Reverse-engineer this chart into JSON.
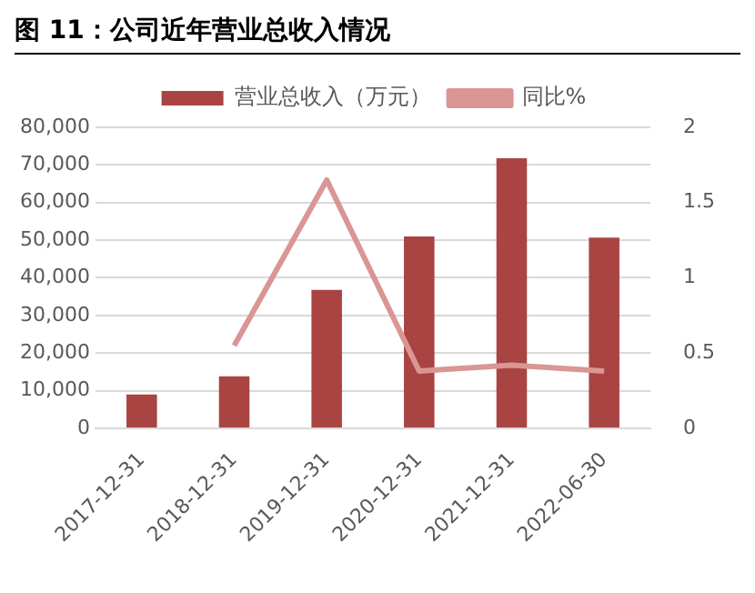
{
  "chart_data": {
    "type": "bar",
    "title": "图 11：公司近年营业总收入情况",
    "categories": [
      "2017-12-31",
      "2018-12-31",
      "2019-12-31",
      "2020-12-31",
      "2021-12-31",
      "2022-06-30"
    ],
    "series": [
      {
        "name": "营业总收入（万元）",
        "color": "#a94442",
        "values": [
          9000,
          13800,
          36800,
          51000,
          71800,
          50700
        ]
      },
      {
        "name": "同比%",
        "type": "line",
        "axis": "y2",
        "color": "#d99694",
        "values": [
          null,
          0.55,
          1.65,
          0.38,
          0.42,
          0.38
        ]
      }
    ],
    "ylim": [
      0,
      80000
    ],
    "yticks": [
      0,
      {
        "value": 10000,
        "label": "10,000"
      },
      {
        "value": 20000,
        "label": "20,000"
      },
      {
        "value": 30000,
        "label": "30,000"
      },
      {
        "value": 40000,
        "label": "40,000"
      },
      {
        "value": 50000,
        "label": "50,000"
      },
      {
        "value": 60000,
        "label": "60,000"
      },
      {
        "value": 70000,
        "label": "70,000"
      },
      {
        "value": 80000,
        "label": "80,000"
      }
    ],
    "y2lim": [
      0,
      2
    ],
    "y2ticks": [
      0,
      0.5,
      1,
      1.5,
      2
    ],
    "grid": "y",
    "legend": "top",
    "marker": "none"
  }
}
